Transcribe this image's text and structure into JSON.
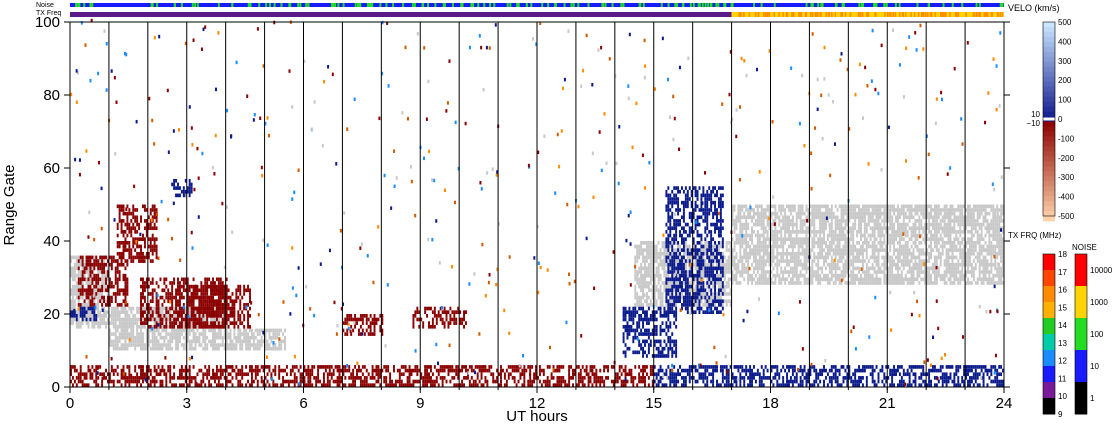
{
  "chart_data": {
    "type": "heatmap",
    "title": "",
    "xlabel": "UT hours",
    "ylabel": "Range Gate",
    "xlim": [
      0,
      24
    ],
    "ylim": [
      0,
      100
    ],
    "xticks": [
      "0",
      "3",
      "6",
      "9",
      "12",
      "15",
      "18",
      "21",
      "24"
    ],
    "yticks": [
      "0",
      "20",
      "40",
      "60",
      "80",
      "100"
    ],
    "grid": "vertical lines every 1 UT hour",
    "colors": {
      "ground_scatter": "#c8c8c8",
      "negative_velocity": "#8b0000",
      "positive_velocity": "#0a1a8c",
      "background": "#ffffff"
    },
    "scatter_regions": [
      {
        "kind": "ground",
        "t": [
          0.0,
          1.0
        ],
        "gates": [
          16,
          36
        ]
      },
      {
        "kind": "ground",
        "t": [
          1.0,
          4.0
        ],
        "gates": [
          10,
          22
        ]
      },
      {
        "kind": "ground",
        "t": [
          4.0,
          5.5
        ],
        "gates": [
          10,
          16
        ]
      },
      {
        "kind": "ground",
        "t": [
          14.5,
          17.0
        ],
        "gates": [
          22,
          40
        ]
      },
      {
        "kind": "ground",
        "t": [
          17.0,
          24.0
        ],
        "gates": [
          28,
          50
        ]
      },
      {
        "kind": "negative",
        "t": [
          0.2,
          1.5
        ],
        "gates": [
          22,
          36
        ]
      },
      {
        "kind": "negative",
        "t": [
          1.2,
          2.2
        ],
        "gates": [
          34,
          50
        ]
      },
      {
        "kind": "negative",
        "t": [
          1.8,
          4.0
        ],
        "gates": [
          16,
          30
        ]
      },
      {
        "kind": "negative",
        "t": [
          3.0,
          4.6
        ],
        "gates": [
          16,
          28
        ]
      },
      {
        "kind": "negative",
        "t": [
          7.0,
          8.0
        ],
        "gates": [
          14,
          20
        ]
      },
      {
        "kind": "negative",
        "t": [
          8.8,
          10.2
        ],
        "gates": [
          16,
          22
        ]
      },
      {
        "kind": "negative",
        "t": [
          0.0,
          15.0
        ],
        "gates": [
          0,
          6
        ]
      },
      {
        "kind": "positive",
        "t": [
          0.0,
          0.7
        ],
        "gates": [
          18,
          22
        ]
      },
      {
        "kind": "positive",
        "t": [
          14.2,
          15.6
        ],
        "gates": [
          8,
          22
        ]
      },
      {
        "kind": "positive",
        "t": [
          15.3,
          16.8
        ],
        "gates": [
          20,
          55
        ]
      },
      {
        "kind": "positive",
        "t": [
          15.0,
          24.0
        ],
        "gates": [
          0,
          6
        ]
      },
      {
        "kind": "positive",
        "t": [
          2.6,
          3.1
        ],
        "gates": [
          52,
          57
        ]
      }
    ]
  },
  "top_bars": {
    "noise_label": "Noise",
    "txfreq_label": "TX Freq",
    "noise_colors": [
      "#1a1aff",
      "#22dd22"
    ],
    "txfreq_colors_before": "#5a1a8a",
    "txfreq_colors_after": [
      "#ffd400",
      "#ff8c00"
    ],
    "txfreq_switch_ut": 17.0
  },
  "velocity_scale": {
    "title": "VELO (km/s)",
    "labels": [
      "500",
      "400",
      "300",
      "200",
      "100",
      "0",
      "-100",
      "-200",
      "-300",
      "-400",
      "-500"
    ],
    "mid_labels": [
      "10",
      "−10"
    ]
  },
  "txfreq_scale": {
    "title": "TX FRQ (MHz)",
    "labels": [
      "18",
      "17",
      "16",
      "15",
      "14",
      "13",
      "12",
      "11",
      "10",
      "9"
    ],
    "colors": [
      "#ff0000",
      "#ff4500",
      "#ff8c00",
      "#ffb000",
      "#22cc22",
      "#00ccaa",
      "#1a8cff",
      "#1a1aff",
      "#7a1a9a",
      "#000000"
    ]
  },
  "noise_scale": {
    "title": "NOISE",
    "labels": [
      "10000",
      "1000",
      "100",
      "10",
      "1"
    ],
    "colors": [
      "#ff0000",
      "#ffd400",
      "#22dd22",
      "#1a1aff",
      "#000000"
    ]
  }
}
